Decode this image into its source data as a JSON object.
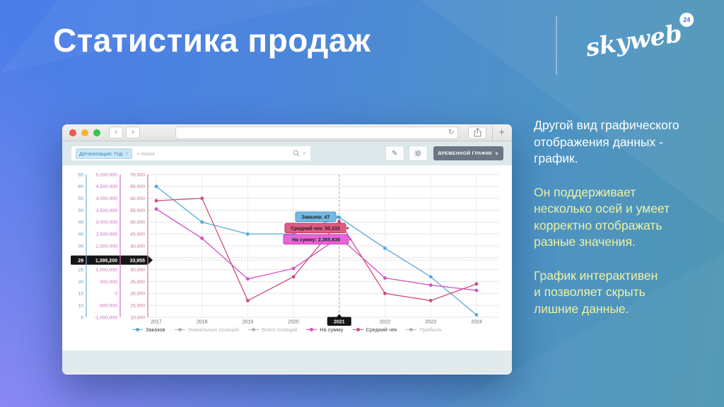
{
  "slide": {
    "title": "Статистика продаж",
    "logo": {
      "brand": "skyweb",
      "badge": "24"
    },
    "side_text": [
      {
        "text": "Другой вид графического\nотображения данных -\nграфик."
      },
      {
        "text": "Он поддерживает\nнесколько осей и умеет\nкорректно отображать\nразные значения."
      },
      {
        "text": "График интерактивен\nи позволяет скрыть\nлишние данные."
      }
    ],
    "accent_colors": {
      "headline": "#ffffff",
      "highlight": "#eef3a4"
    }
  },
  "browser": {
    "nav": {
      "back": "‹",
      "forward": "›",
      "refresh": "↻",
      "new_tab": "+"
    },
    "url_value": "",
    "filter": {
      "chip_label": "Детализация: Год",
      "chip_close": "×",
      "search_placeholder": "+ поиск",
      "clear": "×"
    },
    "toolbar": {
      "pencil": "✎",
      "view_button_label": "ВРЕМЕННОЙ ГРАФИК",
      "view_button_chevron": "∨"
    }
  },
  "chart_data": {
    "type": "line",
    "x": [
      "2017",
      "2018",
      "2019",
      "2020",
      "2021",
      "2022",
      "2023",
      "2024"
    ],
    "highlight_x": "2021",
    "grid": true,
    "legend_position": "bottom",
    "axes": {
      "orders": {
        "min": 5,
        "max": 65,
        "step": 5,
        "line_color": "#6fb0d8",
        "label_color": "#5b9fca"
      },
      "sum": {
        "min": -1000000,
        "max": 5000000,
        "step": 500000,
        "line_color": "#da6ccd",
        "label_color": "#cf6cc2"
      },
      "check": {
        "min": 10000,
        "max": 70000,
        "step": 5000,
        "line_color": "#d4738f",
        "label_color": "#c96f8d"
      }
    },
    "series": [
      {
        "name": "Заказов",
        "axis": "orders",
        "color": "#57a7d6",
        "active": true,
        "values": [
          60,
          45,
          40,
          40,
          47,
          34,
          22,
          6
        ]
      },
      {
        "name": "Уникальных позиций",
        "active": false
      },
      {
        "name": "Всего позиций",
        "active": false
      },
      {
        "name": "На сумму",
        "axis": "sum",
        "color": "#d44fc9",
        "active": true,
        "values": [
          3550000,
          2320000,
          610000,
          1050000,
          2365639,
          650000,
          350000,
          130000
        ]
      },
      {
        "name": "Средний чек",
        "axis": "check",
        "color": "#cc4f72",
        "active": true,
        "values": [
          59000,
          60000,
          17000,
          27000,
          50332,
          20000,
          17000,
          24000
        ]
      },
      {
        "name": "Прибыль",
        "active": false
      }
    ],
    "crosshair": {
      "orders": "29",
      "sum": "1,395,200",
      "check": "33,955"
    },
    "tooltips": [
      {
        "label": "Заказов",
        "value": "47",
        "fill": "#74b9e2",
        "border": "#4e97c6"
      },
      {
        "label": "Средний чек",
        "value": "50,332",
        "fill": "#e05c83",
        "border": "#bf3a60"
      },
      {
        "label": "На сумму",
        "value": "2,365,639",
        "fill": "#ea64d9",
        "border": "#c93eb9"
      }
    ]
  }
}
